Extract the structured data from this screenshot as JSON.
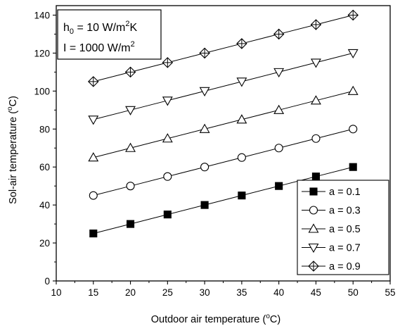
{
  "chart_data": {
    "type": "line",
    "xlabel_main": "Outdoor air temperature (",
    "xlabel_sup": "o",
    "xlabel_end": "C)",
    "ylabel_main": "Sol-air temperature (",
    "ylabel_sup": "o",
    "ylabel_end": "C)",
    "xlim": [
      10,
      55
    ],
    "ylim": [
      0,
      145
    ],
    "xticks": [
      10,
      15,
      20,
      25,
      30,
      35,
      40,
      45,
      50,
      55
    ],
    "yticks": [
      0,
      20,
      40,
      60,
      80,
      100,
      120,
      140
    ],
    "x": [
      15,
      20,
      25,
      30,
      35,
      40,
      45,
      50
    ],
    "series": [
      {
        "name": "a = 0.1",
        "marker": "square-filled",
        "values": [
          25,
          30,
          35,
          40,
          45,
          50,
          55,
          60
        ]
      },
      {
        "name": "a = 0.3",
        "marker": "circle-open",
        "values": [
          45,
          50,
          55,
          60,
          65,
          70,
          75,
          80
        ]
      },
      {
        "name": "a = 0.5",
        "marker": "triangle-up-open",
        "values": [
          65,
          70,
          75,
          80,
          85,
          90,
          95,
          100
        ]
      },
      {
        "name": "a = 0.7",
        "marker": "triangle-down-open",
        "values": [
          85,
          90,
          95,
          100,
          105,
          110,
          115,
          120
        ]
      },
      {
        "name": "a = 0.9",
        "marker": "crossed-diamond-open",
        "values": [
          105,
          110,
          115,
          120,
          125,
          130,
          135,
          140
        ]
      }
    ],
    "legend_position": "bottom-right",
    "annotation": {
      "h_main": "h",
      "h_sub": "0",
      "h_rest": " = 10 W/m",
      "h_sup": "2",
      "h_end": "K",
      "i_main": "I = 1000 W/m",
      "i_sup": "2"
    }
  }
}
